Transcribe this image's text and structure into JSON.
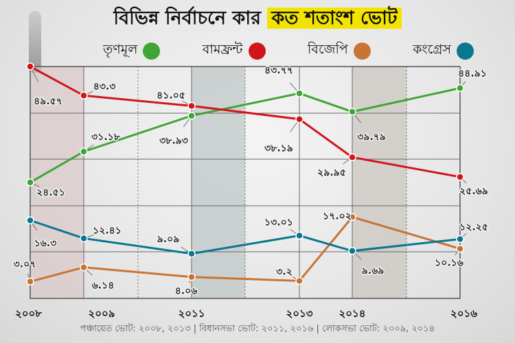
{
  "chart_data": {
    "type": "line",
    "title_part1": "বিভিন্ন নির্বাচনে কার",
    "title_part2": "কত শতাংশ ভোট",
    "x": [
      2008,
      2009,
      2011,
      2013,
      2014,
      2016
    ],
    "x_tick_labels": [
      "২০০৮",
      "২০০৯",
      "২০১১",
      "২০১৩",
      "২০১৪",
      "২০১৬"
    ],
    "ylim": [
      0,
      49.57
    ],
    "grid": true,
    "legend_placement": "top",
    "series": [
      {
        "name": "তৃণমূল",
        "color": "#3fa535",
        "values": [
          24.51,
          31.18,
          38.93,
          43.77,
          39.79,
          44.91
        ],
        "labels": [
          "২৪.৫১",
          "৩১.১৮",
          "৩৮.৯৩",
          "৪৩.৭৭",
          "৩৯.৭৯",
          "৪৪.৯১"
        ]
      },
      {
        "name": "বামফ্রন্ট",
        "color": "#d0161c",
        "values": [
          49.57,
          43.3,
          41.05,
          38.19,
          29.95,
          25.69
        ],
        "labels": [
          "৪৯.৫৭",
          "৪৩.৩",
          "৪১.০৫",
          "৩৮.১৯",
          "২৯.৯৫",
          "২৫.৬৯"
        ]
      },
      {
        "name": "বিজেপি",
        "color": "#c87433",
        "values": [
          3.07,
          6.14,
          4.06,
          3.2,
          17.02,
          10.16
        ],
        "labels": [
          "৩.০৭",
          "৬.১৪",
          "৪.০৬",
          "৩.২",
          "১৭.০২",
          "১০.১৬"
        ]
      },
      {
        "name": "কংগ্রেস",
        "color": "#08778f",
        "values": [
          16.3,
          12.41,
          9.09,
          13.01,
          9.69,
          12.25
        ],
        "labels": [
          "১৬.৩",
          "১২.৪১",
          "৯.০৯",
          "১৩.০১",
          "৯.৬৯",
          "১২.২৫"
        ]
      }
    ],
    "footer": "পঞ্চায়েত ভোট: ২০০৮, ২০১৩  |  বিধানসভা ভোট: ২০১১, ২০১৬  |  লোকসভা ভোট: ২০০৯, ২০১৪"
  }
}
